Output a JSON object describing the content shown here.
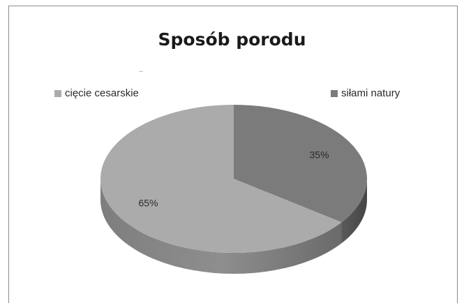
{
  "chart_data": {
    "type": "pie",
    "title": "Sposób porodu",
    "legend_position": "top",
    "slices": [
      {
        "label": "cięcie cesarskie",
        "value": 65,
        "data_label": "65%",
        "color": "#ababab"
      },
      {
        "label": "siłami natury",
        "value": 35,
        "data_label": "35%",
        "color": "#7b7b7b"
      }
    ],
    "style": "3d"
  }
}
